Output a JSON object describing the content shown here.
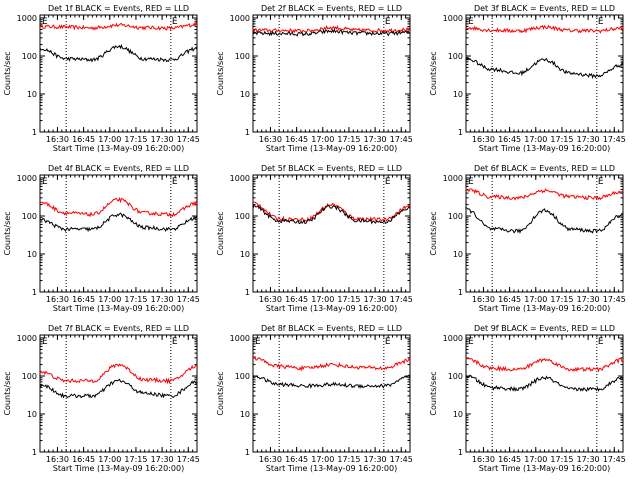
{
  "chart_data": [
    {
      "type": "line",
      "title": "Det 1f BLACK = Events, RED = LLD",
      "xlabel": "Start Time (13-May-09 16:20:00)",
      "ylabel": "Counts/sec",
      "yscale": "log",
      "ylim": [
        1,
        1200
      ],
      "xlim": [
        0,
        5400
      ],
      "yticks": [
        "1",
        "10",
        "100",
        "1000"
      ],
      "xtick_labels": [
        "16:30",
        "16:45",
        "17:00",
        "17:15",
        "17:30",
        "17:45"
      ],
      "x_minutes": [
        0,
        15,
        30,
        45,
        60,
        75,
        90
      ],
      "series": [
        {
          "name": "",
          "color": "#000000",
          "values": [
            160,
            85,
            80,
            180,
            85,
            80,
            160
          ]
        },
        {
          "name": "",
          "color": "#ff0000",
          "values": [
            600,
            580,
            550,
            650,
            560,
            540,
            680
          ]
        }
      ],
      "markers": {
        "left": "E",
        "right": "E"
      },
      "grid": false
    },
    {
      "type": "line",
      "title": "Det 2f BLACK = Events, RED = LLD",
      "xlabel": "Start Time (13-May-09 16:20:00)",
      "ylabel": "Counts/sec",
      "yscale": "log",
      "ylim": [
        1,
        1200
      ],
      "xlim": [
        0,
        5400
      ],
      "yticks": [
        "1",
        "10",
        "100",
        "1000"
      ],
      "xtick_labels": [
        "16:30",
        "16:45",
        "17:00",
        "17:15",
        "17:30",
        "17:45"
      ],
      "x_minutes": [
        0,
        15,
        30,
        45,
        60,
        75,
        90
      ],
      "series": [
        {
          "name": "",
          "color": "#000000",
          "values": [
            400,
            390,
            380,
            450,
            400,
            390,
            420
          ]
        },
        {
          "name": "",
          "color": "#ff0000",
          "values": [
            480,
            470,
            460,
            560,
            480,
            470,
            500
          ]
        }
      ],
      "markers": {
        "left": "",
        "right": "E"
      },
      "grid": false
    },
    {
      "type": "line",
      "title": "Det 3f BLACK = Events, RED = LLD",
      "xlabel": "Start Time (13-May-09 16:20:00)",
      "ylabel": "Counts/sec",
      "yscale": "log",
      "ylim": [
        1,
        1200
      ],
      "xlim": [
        0,
        5400
      ],
      "yticks": [
        "1",
        "10",
        "100",
        "1000"
      ],
      "xtick_labels": [
        "16:30",
        "16:45",
        "17:00",
        "17:15",
        "17:30",
        "17:45"
      ],
      "x_minutes": [
        0,
        15,
        30,
        45,
        60,
        75,
        90
      ],
      "series": [
        {
          "name": "",
          "color": "#000000",
          "values": [
            85,
            45,
            35,
            80,
            35,
            30,
            60
          ]
        },
        {
          "name": "",
          "color": "#ff0000",
          "values": [
            560,
            480,
            460,
            580,
            470,
            460,
            540
          ]
        }
      ],
      "markers": {
        "left": "E",
        "right": "E"
      },
      "grid": false
    },
    {
      "type": "line",
      "title": "Det 4f BLACK = Events, RED = LLD",
      "xlabel": "Start Time (13-May-09 16:20:00)",
      "ylabel": "Counts/sec",
      "yscale": "log",
      "ylim": [
        1,
        1200
      ],
      "xlim": [
        0,
        5400
      ],
      "yticks": [
        "1",
        "10",
        "100",
        "1000"
      ],
      "xtick_labels": [
        "16:30",
        "16:45",
        "17:00",
        "17:15",
        "17:30",
        "17:45"
      ],
      "x_minutes": [
        0,
        15,
        30,
        45,
        60,
        75,
        90
      ],
      "series": [
        {
          "name": "",
          "color": "#000000",
          "values": [
            80,
            45,
            45,
            110,
            50,
            45,
            90
          ]
        },
        {
          "name": "",
          "color": "#ff0000",
          "values": [
            230,
            120,
            110,
            270,
            120,
            110,
            220
          ]
        }
      ],
      "markers": {
        "left": "E",
        "right": "E"
      },
      "grid": false
    },
    {
      "type": "line",
      "title": "Det 5f BLACK = Events, RED = LLD",
      "xlabel": "Start Time (13-May-09 16:20:00)",
      "ylabel": "Counts/sec",
      "yscale": "log",
      "ylim": [
        1,
        1200
      ],
      "xlim": [
        0,
        5400
      ],
      "yticks": [
        "1",
        "10",
        "100",
        "1000"
      ],
      "xtick_labels": [
        "16:30",
        "16:45",
        "17:00",
        "17:15",
        "17:30",
        "17:45"
      ],
      "x_minutes": [
        0,
        15,
        30,
        45,
        60,
        75,
        90
      ],
      "series": [
        {
          "name": "",
          "color": "#000000",
          "values": [
            180,
            75,
            70,
            180,
            75,
            70,
            160
          ]
        },
        {
          "name": "",
          "color": "#ff0000",
          "values": [
            220,
            85,
            80,
            200,
            85,
            80,
            180
          ]
        }
      ],
      "markers": {
        "left": "",
        "right": "E"
      },
      "grid": false
    },
    {
      "type": "line",
      "title": "Det 6f BLACK = Events, RED = LLD",
      "xlabel": "Start Time (13-May-09 16:20:00)",
      "ylabel": "Counts/sec",
      "yscale": "log",
      "ylim": [
        1,
        1200
      ],
      "xlim": [
        0,
        5400
      ],
      "yticks": [
        "1",
        "10",
        "100",
        "1000"
      ],
      "xtick_labels": [
        "16:30",
        "16:45",
        "17:00",
        "17:15",
        "17:30",
        "17:45"
      ],
      "x_minutes": [
        0,
        15,
        30,
        45,
        60,
        75,
        90
      ],
      "series": [
        {
          "name": "",
          "color": "#000000",
          "values": [
            150,
            45,
            40,
            140,
            45,
            40,
            110
          ]
        },
        {
          "name": "",
          "color": "#ff0000",
          "values": [
            500,
            320,
            300,
            470,
            320,
            300,
            440
          ]
        }
      ],
      "markers": {
        "left": "E",
        "right": "E"
      },
      "grid": false
    },
    {
      "type": "line",
      "title": "Det 7f BLACK = Events, RED = LLD",
      "xlabel": "Start Time (13-May-09 16:20:00)",
      "ylabel": "Counts/sec",
      "yscale": "log",
      "ylim": [
        1,
        1200
      ],
      "xlim": [
        0,
        5400
      ],
      "yticks": [
        "1",
        "10",
        "100",
        "1000"
      ],
      "xtick_labels": [
        "16:30",
        "16:45",
        "17:00",
        "17:15",
        "17:30",
        "17:45"
      ],
      "x_minutes": [
        0,
        15,
        30,
        45,
        60,
        75,
        90
      ],
      "series": [
        {
          "name": "",
          "color": "#000000",
          "values": [
            60,
            30,
            30,
            75,
            35,
            30,
            70
          ]
        },
        {
          "name": "",
          "color": "#ff0000",
          "values": [
            130,
            75,
            75,
            200,
            80,
            75,
            180
          ]
        }
      ],
      "markers": {
        "left": "E",
        "right": "E"
      },
      "grid": false
    },
    {
      "type": "line",
      "title": "Det 8f BLACK = Events, RED = LLD",
      "xlabel": "Start Time (13-May-09 16:20:00)",
      "ylabel": "Counts/sec",
      "yscale": "log",
      "ylim": [
        1,
        1200
      ],
      "xlim": [
        0,
        5400
      ],
      "yticks": [
        "1",
        "10",
        "100",
        "1000"
      ],
      "xtick_labels": [
        "16:30",
        "16:45",
        "17:00",
        "17:15",
        "17:30",
        "17:45"
      ],
      "x_minutes": [
        0,
        15,
        30,
        45,
        60,
        75,
        90
      ],
      "series": [
        {
          "name": "",
          "color": "#000000",
          "values": [
            100,
            60,
            55,
            60,
            55,
            55,
            95
          ]
        },
        {
          "name": "",
          "color": "#ff0000",
          "values": [
            300,
            180,
            160,
            200,
            170,
            160,
            260
          ]
        }
      ],
      "markers": {
        "left": "E",
        "right": "E"
      },
      "grid": false
    },
    {
      "type": "line",
      "title": "Det 9f BLACK = Events, RED = LLD",
      "xlabel": "Start Time (13-May-09 16:20:00)",
      "ylabel": "Counts/sec",
      "yscale": "log",
      "ylim": [
        1,
        1200
      ],
      "xlim": [
        0,
        5400
      ],
      "yticks": [
        "1",
        "10",
        "100",
        "1000"
      ],
      "xtick_labels": [
        "16:30",
        "16:45",
        "17:00",
        "17:15",
        "17:30",
        "17:45"
      ],
      "x_minutes": [
        0,
        15,
        30,
        45,
        60,
        75,
        90
      ],
      "series": [
        {
          "name": "",
          "color": "#000000",
          "values": [
            100,
            50,
            45,
            90,
            45,
            45,
            90
          ]
        },
        {
          "name": "",
          "color": "#ff0000",
          "values": [
            280,
            160,
            150,
            270,
            150,
            150,
            270
          ]
        }
      ],
      "markers": {
        "left": "E",
        "right": "E"
      },
      "grid": false
    }
  ]
}
